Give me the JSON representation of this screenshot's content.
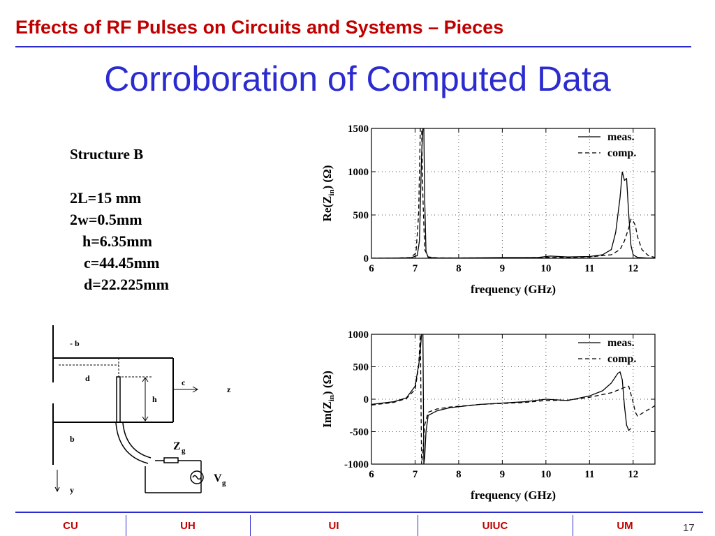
{
  "header": {
    "title": "Effects of RF Pulses on Circuits and Systems – Pieces"
  },
  "slide": {
    "title": "Corroboration of Computed Data"
  },
  "structure": {
    "heading": "Structure B",
    "params": [
      "2L=15 mm",
      "2w=0.5mm",
      "h=6.35mm",
      "c=44.45mm",
      "d=22.225mm"
    ]
  },
  "diagram": {
    "labels": {
      "minus_b": "- b",
      "d": "d",
      "h": "h",
      "c": "c",
      "z": "z",
      "b": "b",
      "y": "y",
      "Zg": "Z",
      "Zg_sub": "g",
      "Vg": "V",
      "Vg_sub": "g"
    }
  },
  "footer": {
    "items": [
      "CU",
      "UH",
      "UI",
      "UIUC",
      "UM"
    ],
    "page": "17"
  },
  "colors": {
    "header": "#c00000",
    "title": "#2b2bd0",
    "rule": "#2b2bd0"
  },
  "chart_data": [
    {
      "type": "line",
      "ylabel": "Re(Z",
      "ylabel_sub": "in",
      "ylabel_end": ") (Ω)",
      "xlabel": "frequency (GHz)",
      "xlim": [
        6,
        12.5
      ],
      "ylim": [
        0,
        1500
      ],
      "xticks": [
        6,
        7,
        8,
        9,
        10,
        11,
        12
      ],
      "yticks": [
        0,
        500,
        1000,
        1500
      ],
      "grid": true,
      "legend": "top-right",
      "series": [
        {
          "name": "meas.",
          "style": "solid",
          "x": [
            6,
            6.5,
            6.9,
            7.05,
            7.1,
            7.15,
            7.18,
            7.2,
            7.22,
            7.25,
            7.3,
            7.5,
            8,
            9,
            9.8,
            10.1,
            10.5,
            11,
            11.3,
            11.5,
            11.6,
            11.7,
            11.75,
            11.8,
            11.85,
            11.9,
            11.95,
            12,
            12.1,
            12.3,
            12.5
          ],
          "y": [
            0,
            2,
            5,
            30,
            200,
            1200,
            1500,
            1500,
            700,
            80,
            10,
            3,
            3,
            8,
            8,
            25,
            15,
            20,
            40,
            100,
            300,
            700,
            1000,
            900,
            920,
            500,
            150,
            40,
            10,
            3,
            2
          ]
        },
        {
          "name": "comp.",
          "style": "dashed",
          "x": [
            6,
            6.5,
            6.9,
            7.02,
            7.08,
            7.12,
            7.15,
            7.18,
            7.22,
            7.3,
            7.5,
            8,
            9,
            10,
            10.5,
            11,
            11.5,
            11.7,
            11.8,
            11.9,
            11.95,
            12,
            12.05,
            12.1,
            12.2,
            12.35,
            12.5
          ],
          "y": [
            0,
            2,
            8,
            60,
            500,
            1500,
            1500,
            700,
            100,
            15,
            5,
            3,
            5,
            10,
            8,
            15,
            40,
            100,
            200,
            350,
            450,
            430,
            380,
            250,
            100,
            30,
            10
          ]
        }
      ]
    },
    {
      "type": "line",
      "ylabel": "Im(Z",
      "ylabel_sub": "in",
      "ylabel_end": ") (Ω)",
      "xlabel": "frequency (GHz)",
      "xlim": [
        6,
        12.5
      ],
      "ylim": [
        -1000,
        1000
      ],
      "xticks": [
        6,
        7,
        8,
        9,
        10,
        11,
        12
      ],
      "yticks": [
        -1000,
        -500,
        0,
        500,
        1000
      ],
      "grid": true,
      "legend": "top-right",
      "series": [
        {
          "name": "meas.",
          "style": "solid",
          "x": [
            6,
            6.5,
            6.8,
            7.0,
            7.1,
            7.15,
            7.18,
            7.2,
            7.22,
            7.25,
            7.3,
            7.5,
            7.8,
            8.5,
            9.5,
            10,
            10.5,
            11,
            11.3,
            11.5,
            11.65,
            11.7,
            11.75,
            11.8,
            11.85,
            11.9,
            11.95
          ],
          "y": [
            -80,
            -40,
            20,
            200,
            600,
            1000,
            1000,
            -1000,
            -900,
            -500,
            -250,
            -180,
            -130,
            -80,
            -40,
            0,
            -20,
            50,
            130,
            250,
            400,
            420,
            300,
            -100,
            -400,
            -480,
            -450
          ]
        },
        {
          "name": "comp.",
          "style": "dashed",
          "x": [
            6,
            6.5,
            6.8,
            7.0,
            7.08,
            7.12,
            7.15,
            7.18,
            7.22,
            7.3,
            7.5,
            7.8,
            8.5,
            9.5,
            10,
            10.5,
            11,
            11.5,
            11.8,
            11.9,
            12,
            12.05,
            12.1,
            12.3,
            12.5
          ],
          "y": [
            -90,
            -50,
            10,
            150,
            500,
            1000,
            -1000,
            -800,
            -400,
            -200,
            -150,
            -120,
            -80,
            -50,
            -20,
            -15,
            30,
            100,
            180,
            200,
            -50,
            -200,
            -260,
            -180,
            -100
          ]
        }
      ]
    }
  ]
}
